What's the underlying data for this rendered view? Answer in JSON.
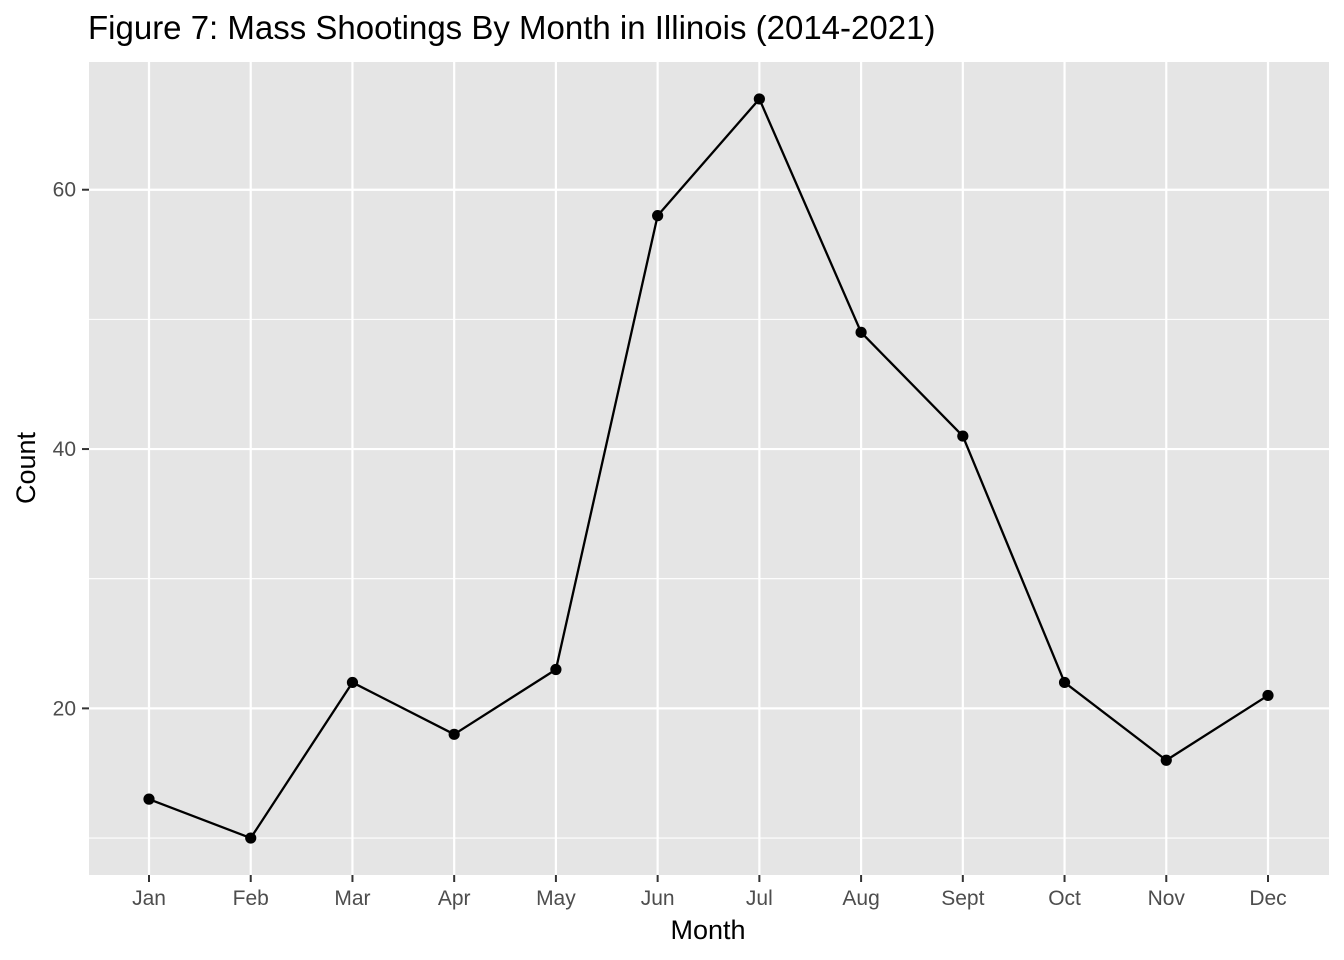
{
  "chart_data": {
    "type": "line",
    "title": "Figure 7: Mass Shootings By Month in Illinois (2014-2021)",
    "xlabel": "Month",
    "ylabel": "Count",
    "categories": [
      "Jan",
      "Feb",
      "Mar",
      "Apr",
      "May",
      "Jun",
      "Jul",
      "Aug",
      "Sept",
      "Oct",
      "Nov",
      "Dec"
    ],
    "series": [
      {
        "name": "Count",
        "values": [
          13,
          10,
          22,
          18,
          23,
          58,
          67,
          49,
          41,
          22,
          16,
          21
        ]
      }
    ],
    "y_ticks": [
      20,
      40,
      60
    ],
    "y_minor_ticks": [
      10,
      30,
      50
    ],
    "ylim": [
      7.15,
      69.85
    ],
    "grid": true,
    "legend": "none",
    "colors": {
      "panel_background": "#e5e5e5",
      "grid": "#ffffff",
      "line": "#000000",
      "point": "#000000",
      "tick_text": "#4d4d4d",
      "tick_mark": "#333333"
    }
  }
}
